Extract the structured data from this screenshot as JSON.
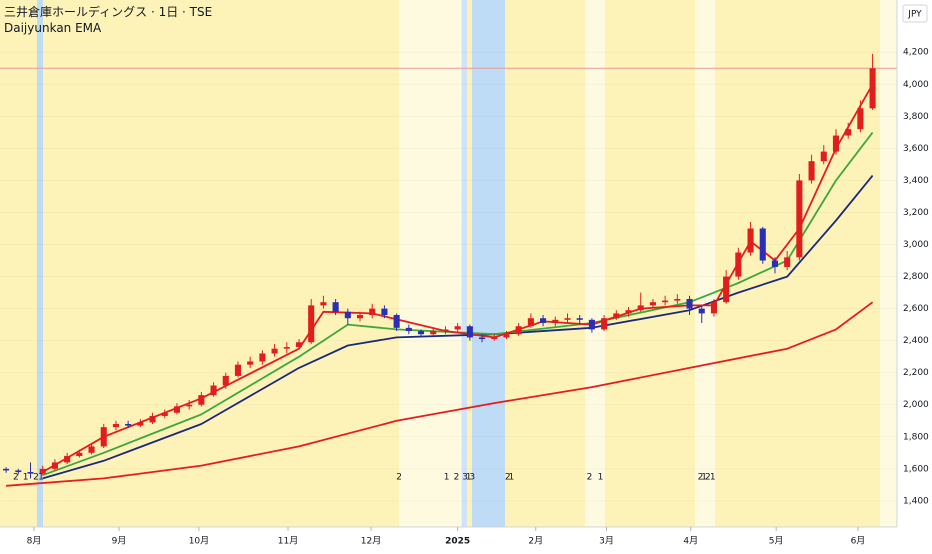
{
  "chart_data": {
    "type": "candlestick",
    "title": "三井倉庫ホールディングス · 1日 · TSE",
    "subtitle": "Daijyunkan EMA",
    "y_unit": "JPY",
    "up_color": "#e01e1e",
    "down_color": "#2a2fb5",
    "candles": {
      "open": [
        1600,
        1590,
        1580,
        1570,
        1600,
        1640,
        1680,
        1700,
        1740,
        1860,
        1880,
        1870,
        1890,
        1930,
        1950,
        1990,
        2000,
        2060,
        2120,
        2180,
        2250,
        2270,
        2320,
        2350,
        2360,
        2390,
        2620,
        2640,
        2580,
        2540,
        2560,
        2600,
        2560,
        2480,
        2460,
        2440,
        2460,
        2470,
        2490,
        2420,
        2410,
        2420,
        2440,
        2490,
        2540,
        2510,
        2530,
        2540,
        2530,
        2470,
        2540,
        2570,
        2590,
        2620,
        2640,
        2650,
        2660,
        2600,
        2570,
        2640,
        2800,
        2950,
        3100,
        2900,
        2860,
        2920,
        3400,
        3520,
        3580,
        3680,
        3720,
        3850
      ],
      "high": [
        1610,
        1600,
        1640,
        1620,
        1660,
        1700,
        1720,
        1760,
        1880,
        1900,
        1900,
        1910,
        1950,
        1970,
        2010,
        2030,
        2080,
        2140,
        2200,
        2270,
        2300,
        2340,
        2380,
        2390,
        2410,
        2660,
        2680,
        2660,
        2600,
        2580,
        2630,
        2620,
        2570,
        2500,
        2470,
        2480,
        2490,
        2510,
        2500,
        2440,
        2440,
        2460,
        2510,
        2570,
        2560,
        2550,
        2570,
        2560,
        2540,
        2560,
        2590,
        2610,
        2700,
        2660,
        2680,
        2690,
        2680,
        2620,
        2660,
        2840,
        2980,
        3140,
        3110,
        2920,
        2960,
        3440,
        3560,
        3620,
        3720,
        3760,
        3900,
        4190
      ],
      "low": [
        1575,
        1565,
        1540,
        1560,
        1590,
        1630,
        1670,
        1690,
        1730,
        1840,
        1855,
        1860,
        1880,
        1915,
        1940,
        1970,
        1990,
        2050,
        2100,
        2170,
        2230,
        2250,
        2300,
        2320,
        2350,
        2380,
        2600,
        2560,
        2500,
        2520,
        2540,
        2540,
        2460,
        2440,
        2420,
        2430,
        2440,
        2450,
        2400,
        2390,
        2400,
        2410,
        2430,
        2480,
        2490,
        2490,
        2510,
        2500,
        2450,
        2460,
        2530,
        2550,
        2580,
        2600,
        2620,
        2630,
        2560,
        2510,
        2550,
        2630,
        2780,
        2930,
        2880,
        2820,
        2840,
        2900,
        3380,
        3500,
        3560,
        3660,
        3700,
        3840
      ],
      "close": [
        1590,
        1580,
        1570,
        1600,
        1640,
        1680,
        1700,
        1740,
        1860,
        1880,
        1870,
        1890,
        1930,
        1950,
        1990,
        2000,
        2060,
        2120,
        2180,
        2250,
        2270,
        2320,
        2350,
        2360,
        2390,
        2620,
        2640,
        2580,
        2540,
        2560,
        2600,
        2560,
        2480,
        2460,
        2440,
        2460,
        2470,
        2490,
        2420,
        2410,
        2420,
        2440,
        2490,
        2540,
        2510,
        2530,
        2540,
        2530,
        2470,
        2540,
        2570,
        2590,
        2620,
        2640,
        2650,
        2660,
        2600,
        2570,
        2640,
        2800,
        2950,
        3100,
        2900,
        2860,
        2920,
        3400,
        3520,
        3580,
        3680,
        3720,
        3850,
        4100
      ]
    },
    "lines": [
      {
        "color": "#e81c1c",
        "x": [
          0,
          8,
          16,
          24,
          32,
          40,
          48,
          56,
          64,
          68,
          71
        ],
        "values": [
          1494,
          1540,
          1620,
          1740,
          1900,
          2010,
          2110,
          2230,
          2350,
          2470,
          2640
        ]
      },
      {
        "color": "#1c2a7a",
        "x": [
          3,
          8,
          16,
          24,
          28,
          32,
          40,
          48,
          56,
          60,
          64,
          68,
          71
        ],
        "values": [
          1540,
          1650,
          1880,
          2230,
          2370,
          2420,
          2440,
          2480,
          2590,
          2700,
          2800,
          3150,
          3430
        ]
      },
      {
        "color": "#3fa83a",
        "x": [
          3,
          8,
          16,
          24,
          28,
          32,
          40,
          48,
          56,
          60,
          64,
          68,
          71
        ],
        "values": [
          1560,
          1700,
          1940,
          2300,
          2500,
          2470,
          2440,
          2510,
          2640,
          2760,
          2900,
          3400,
          3700
        ]
      },
      {
        "color": "#e81c1c",
        "x": [
          3,
          8,
          16,
          24,
          26,
          30,
          36,
          40,
          44,
          48,
          52,
          56,
          58,
          61,
          63,
          65,
          68,
          71
        ],
        "values": [
          1580,
          1800,
          2040,
          2350,
          2580,
          2570,
          2460,
          2420,
          2520,
          2500,
          2600,
          2620,
          2620,
          3020,
          2900,
          3100,
          3600,
          4000
        ]
      }
    ],
    "xlim": [
      -0.5,
      73
    ],
    "xticks": [
      {
        "value": 2.29,
        "label": "8月"
      },
      {
        "value": 9.25,
        "label": "9月"
      },
      {
        "value": 15.8,
        "label": "10月"
      },
      {
        "value": 23.1,
        "label": "11月"
      },
      {
        "value": 29.9,
        "label": "12月"
      },
      {
        "value": 37.0,
        "label": "2025"
      },
      {
        "value": 43.4,
        "label": "2月"
      },
      {
        "value": 49.2,
        "label": "3月"
      },
      {
        "value": 56.1,
        "label": "4月"
      },
      {
        "value": 63.1,
        "label": "5月"
      },
      {
        "value": 69.8,
        "label": "6月"
      }
    ],
    "ylim": [
      1237,
      4526
    ],
    "yticks": [
      {
        "value": 1400,
        "label": "1,400"
      },
      {
        "value": 1600,
        "label": "1,600"
      },
      {
        "value": 1800,
        "label": "1,800"
      },
      {
        "value": 2000,
        "label": "2,000"
      },
      {
        "value": 2200,
        "label": "2,200"
      },
      {
        "value": 2400,
        "label": "2,400"
      },
      {
        "value": 2600,
        "label": "2,600"
      },
      {
        "value": 2800,
        "label": "2,800"
      },
      {
        "value": 3000,
        "label": "3,000"
      },
      {
        "value": 3200,
        "label": "3,200"
      },
      {
        "value": 3400,
        "label": "3,400"
      },
      {
        "value": 3600,
        "label": "3,600"
      },
      {
        "value": 3800,
        "label": "3,800"
      },
      {
        "value": 4000,
        "label": "4,000"
      },
      {
        "value": 4200,
        "label": "4,200"
      }
    ],
    "price_line": 4100,
    "markers": [
      {
        "x": 0.8,
        "label": "2"
      },
      {
        "x": 1.6,
        "label": "1"
      },
      {
        "x": 2.45,
        "label": "2"
      },
      {
        "x": 2.86,
        "label": "1"
      },
      {
        "x": 32.2,
        "label": "2"
      },
      {
        "x": 36.1,
        "label": "1"
      },
      {
        "x": 36.9,
        "label": "2"
      },
      {
        "x": 37.6,
        "label": "3"
      },
      {
        "x": 37.9,
        "label": "1"
      },
      {
        "x": 38.2,
        "label": "3"
      },
      {
        "x": 41.1,
        "label": "2"
      },
      {
        "x": 41.4,
        "label": "1"
      },
      {
        "x": 47.8,
        "label": "2"
      },
      {
        "x": 48.7,
        "label": "1"
      },
      {
        "x": 56.9,
        "label": "2"
      },
      {
        "x": 57.2,
        "label": "1"
      },
      {
        "x": 57.5,
        "label": "2"
      },
      {
        "x": 57.9,
        "label": "1"
      }
    ]
  }
}
